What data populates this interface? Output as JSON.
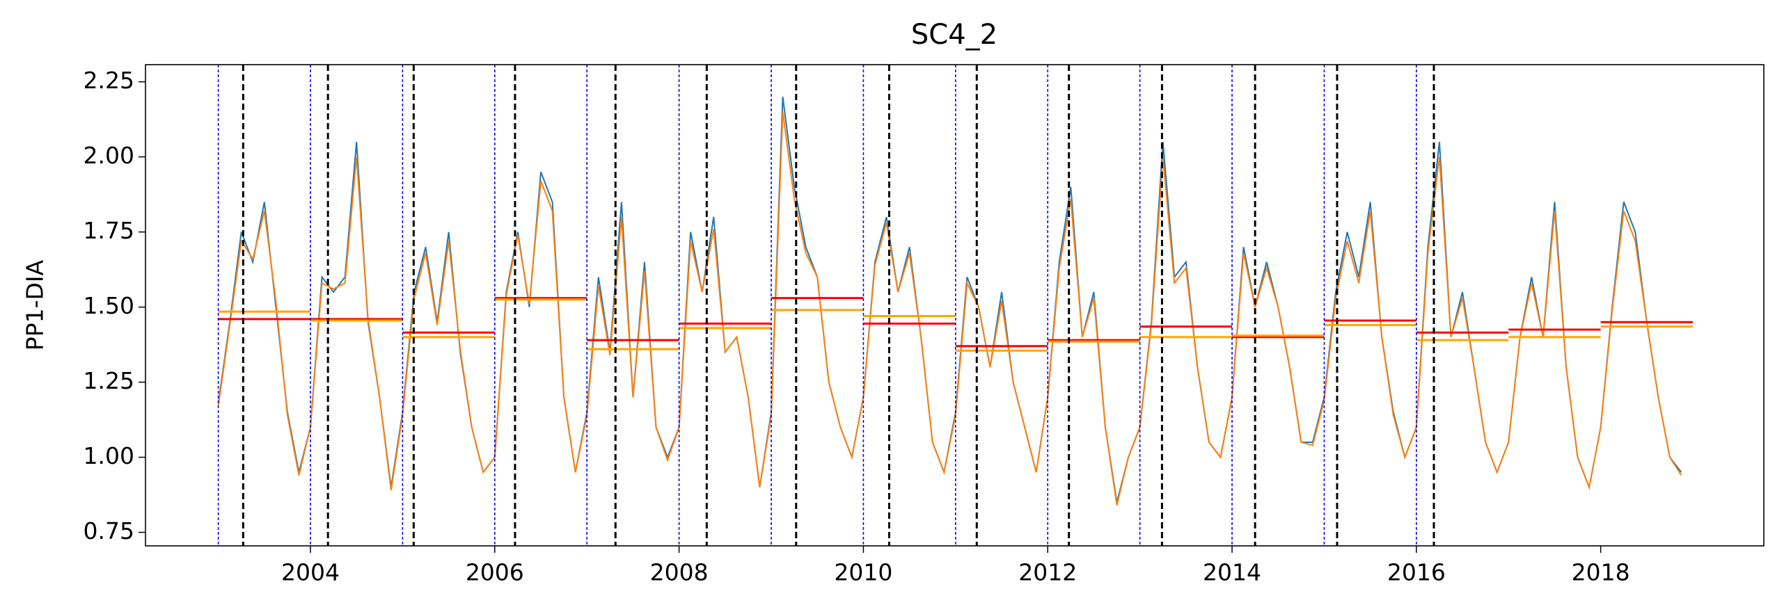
{
  "chart_data": {
    "type": "line",
    "title": "SC4_2",
    "y_label": "PP1-DIA",
    "xlim": [
      2002.21,
      2019.77
    ],
    "ylim": [
      0.705,
      2.307
    ],
    "xticks": [
      2004,
      2006,
      2008,
      2010,
      2012,
      2014,
      2016,
      2018
    ],
    "yticks": [
      0.75,
      {
        "value": 1.0,
        "label": "1.00"
      },
      1.25,
      {
        "value": 1.5,
        "label": "1.50"
      },
      1.75,
      {
        "value": 2.0,
        "label": "2.00"
      },
      2.25
    ],
    "x": [
      2003,
      2003.125,
      2003.25,
      2003.375,
      2003.5,
      2003.625,
      2003.75,
      2003.875,
      2004,
      2004.125,
      2004.25,
      2004.375,
      2004.5,
      2004.625,
      2004.75,
      2004.875,
      2005,
      2005.125,
      2005.25,
      2005.375,
      2005.5,
      2005.625,
      2005.75,
      2005.875,
      2006,
      2006.125,
      2006.25,
      2006.375,
      2006.5,
      2006.625,
      2006.75,
      2006.875,
      2007,
      2007.125,
      2007.25,
      2007.375,
      2007.5,
      2007.625,
      2007.75,
      2007.875,
      2008,
      2008.125,
      2008.25,
      2008.375,
      2008.5,
      2008.625,
      2008.75,
      2008.875,
      2009,
      2009.125,
      2009.25,
      2009.375,
      2009.5,
      2009.625,
      2009.75,
      2009.875,
      2010,
      2010.125,
      2010.25,
      2010.375,
      2010.5,
      2010.625,
      2010.75,
      2010.875,
      2011,
      2011.125,
      2011.25,
      2011.375,
      2011.5,
      2011.625,
      2011.75,
      2011.875,
      2012,
      2012.125,
      2012.25,
      2012.375,
      2012.5,
      2012.625,
      2012.75,
      2012.875,
      2013,
      2013.125,
      2013.25,
      2013.375,
      2013.5,
      2013.625,
      2013.75,
      2013.875,
      2014,
      2014.125,
      2014.25,
      2014.375,
      2014.5,
      2014.625,
      2014.75,
      2014.875,
      2015,
      2015.125,
      2015.25,
      2015.375,
      2015.5,
      2015.625,
      2015.75,
      2015.875,
      2016,
      2016.125,
      2016.25,
      2016.375,
      2016.5,
      2016.625,
      2016.75,
      2016.875,
      2017,
      2017.125,
      2017.25,
      2017.375,
      2017.5,
      2017.625,
      2017.75,
      2017.875,
      2018,
      2018.125,
      2018.25,
      2018.375,
      2018.5,
      2018.625,
      2018.75,
      2018.875
    ],
    "series": [
      {
        "color": "#1f77b4",
        "values": [
          1.18,
          1.45,
          1.75,
          1.65,
          1.85,
          1.5,
          1.15,
          0.95,
          1.1,
          1.6,
          1.55,
          1.6,
          2.05,
          1.45,
          1.2,
          0.9,
          1.15,
          1.55,
          1.7,
          1.45,
          1.75,
          1.35,
          1.1,
          0.95,
          1.0,
          1.55,
          1.75,
          1.5,
          1.95,
          1.85,
          1.2,
          0.95,
          1.15,
          1.6,
          1.35,
          1.85,
          1.2,
          1.65,
          1.1,
          1.0,
          1.1,
          1.75,
          1.55,
          1.8,
          1.35,
          1.4,
          1.2,
          0.9,
          1.15,
          2.2,
          1.9,
          1.7,
          1.6,
          1.25,
          1.1,
          1.0,
          1.2,
          1.65,
          1.8,
          1.55,
          1.7,
          1.4,
          1.05,
          0.95,
          1.15,
          1.6,
          1.5,
          1.3,
          1.55,
          1.25,
          1.1,
          0.95,
          1.2,
          1.65,
          1.9,
          1.4,
          1.55,
          1.1,
          0.85,
          1.0,
          1.1,
          1.45,
          2.05,
          1.6,
          1.65,
          1.3,
          1.05,
          1.0,
          1.2,
          1.7,
          1.5,
          1.65,
          1.5,
          1.3,
          1.05,
          1.05,
          1.2,
          1.55,
          1.75,
          1.6,
          1.85,
          1.4,
          1.15,
          1.0,
          1.1,
          1.7,
          2.05,
          1.4,
          1.55,
          1.3,
          1.05,
          0.95,
          1.05,
          1.4,
          1.6,
          1.4,
          1.85,
          1.3,
          1.0,
          0.9,
          1.1,
          1.5,
          1.85,
          1.75,
          1.45,
          1.2,
          1.0,
          0.95
        ]
      },
      {
        "color": "#ff7f0e",
        "values": [
          1.17,
          1.44,
          1.72,
          1.66,
          1.82,
          1.52,
          1.14,
          0.94,
          1.1,
          1.58,
          1.56,
          1.58,
          2.0,
          1.46,
          1.2,
          0.89,
          1.14,
          1.53,
          1.68,
          1.44,
          1.72,
          1.36,
          1.1,
          0.95,
          1.0,
          1.54,
          1.74,
          1.51,
          1.92,
          1.82,
          1.2,
          0.95,
          1.14,
          1.57,
          1.34,
          1.8,
          1.2,
          1.62,
          1.1,
          0.99,
          1.1,
          1.72,
          1.55,
          1.76,
          1.35,
          1.4,
          1.2,
          0.9,
          1.14,
          2.15,
          1.86,
          1.68,
          1.6,
          1.25,
          1.1,
          1.0,
          1.2,
          1.64,
          1.78,
          1.55,
          1.68,
          1.4,
          1.05,
          0.95,
          1.14,
          1.58,
          1.5,
          1.3,
          1.52,
          1.25,
          1.1,
          0.95,
          1.2,
          1.63,
          1.86,
          1.4,
          1.53,
          1.1,
          0.84,
          1.0,
          1.1,
          1.44,
          2.0,
          1.58,
          1.63,
          1.3,
          1.05,
          1.0,
          1.2,
          1.68,
          1.5,
          1.63,
          1.5,
          1.3,
          1.05,
          1.04,
          1.19,
          1.53,
          1.72,
          1.58,
          1.82,
          1.4,
          1.14,
          1.0,
          1.1,
          1.68,
          2.0,
          1.4,
          1.53,
          1.3,
          1.05,
          0.95,
          1.05,
          1.4,
          1.58,
          1.4,
          1.82,
          1.3,
          1.0,
          0.9,
          1.1,
          1.49,
          1.82,
          1.72,
          1.45,
          1.2,
          1.0,
          0.94
        ]
      }
    ],
    "annual_means": {
      "years": [
        2003,
        2004,
        2005,
        2006,
        2007,
        2008,
        2009,
        2010,
        2011,
        2012,
        2013,
        2014,
        2015,
        2016,
        2017,
        2018
      ],
      "series": [
        {
          "color": "#ff0000",
          "values": [
            1.46,
            1.46,
            1.415,
            1.53,
            1.39,
            1.445,
            1.53,
            1.445,
            1.37,
            1.39,
            1.435,
            1.4,
            1.455,
            1.415,
            1.425,
            1.45
          ]
        },
        {
          "color": "#ffa500",
          "values": [
            1.485,
            1.455,
            1.4,
            1.525,
            1.36,
            1.43,
            1.49,
            1.47,
            1.355,
            1.385,
            1.4,
            1.405,
            1.44,
            1.39,
            1.4,
            1.435
          ]
        }
      ]
    },
    "year_starts": {
      "color": "#0000ff",
      "values": [
        2003,
        2004,
        2005,
        2006,
        2007,
        2008,
        2009,
        2010,
        2011,
        2012,
        2013,
        2014,
        2015,
        2016
      ]
    },
    "event_lines": {
      "color": "#000000",
      "values": [
        2003.27,
        2004.19,
        2005.12,
        2006.22,
        2007.31,
        2008.3,
        2009.27,
        2010.28,
        2011.23,
        2012.23,
        2013.24,
        2014.25,
        2015.14,
        2016.19
      ]
    }
  }
}
